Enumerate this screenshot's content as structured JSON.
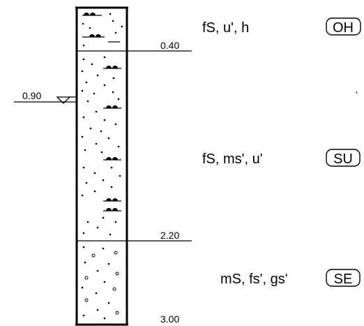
{
  "boundaries": [
    {
      "depth_label": "0.40"
    },
    {
      "depth_label": "2.20"
    },
    {
      "depth_label": "3.00"
    }
  ],
  "groundwater": {
    "depth_label": "0.90"
  },
  "layers": [
    {
      "description": "fS, u', h",
      "code": "OH"
    },
    {
      "description": "fS, ms', u'",
      "code": "SU"
    },
    {
      "description": "mS, fs', gs'",
      "code": "SE"
    }
  ]
}
